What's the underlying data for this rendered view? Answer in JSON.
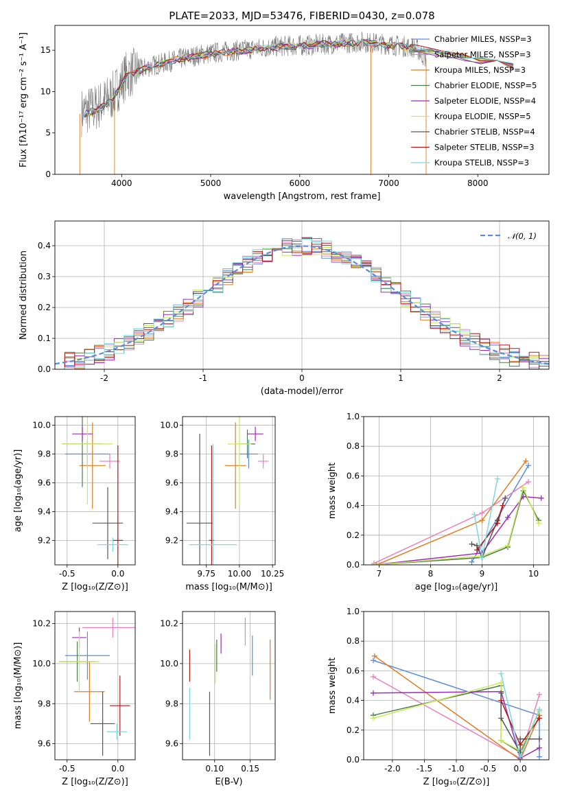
{
  "colors": {
    "chabrier_miles": "#5b8bd8",
    "salpeter_miles": "#e87fc0",
    "kroupa_miles": "#e07b20",
    "chabrier_elodie": "#4a7a4a",
    "salpeter_elodie": "#9a2ab8",
    "kroupa_elodie": "#c8ea5a",
    "chabrier_stelib": "#555555",
    "salpeter_stelib": "#b01818",
    "kroupa_stelib": "#7ad8e0",
    "grid": "#b0b0b0"
  },
  "chart_data": [
    {
      "id": "spectrum",
      "type": "line",
      "title": "PLATE=2033, MJD=53476, FIBERID=0430, z=0.078",
      "xlabel": "wavelength [Angstrom, rest frame]",
      "ylabel": "Flux [fλ10⁻¹⁷ erg cm⁻² s⁻¹ A⁻¹]",
      "xlim": [
        3250,
        8800
      ],
      "ylim": [
        0,
        18
      ],
      "xticks": [
        4000,
        5000,
        6000,
        7000,
        8000
      ],
      "yticks": [
        0,
        5,
        10,
        15
      ],
      "grid": false,
      "legend_loc": "right",
      "legend": [
        "Chabrier MILES, NSSP=3",
        "Salpeter MILES, NSSP=3",
        "Kroupa MILES, NSSP=3",
        "Chabrier ELODIE, NSSP=5",
        "Salpeter ELODIE, NSSP=4",
        "Kroupa ELODIE, NSSP=5",
        "Chabrier STELIB, NSSP=4",
        "Salpeter STELIB, NSSP=3",
        "Kroupa STELIB, NSSP=3"
      ],
      "data_wavelength": [
        3550,
        3700,
        3900,
        4050,
        4300,
        4600,
        4900,
        5200,
        5500,
        5800,
        6100,
        6400,
        6700,
        7000,
        7300,
        7420
      ],
      "data_flux": [
        7.5,
        8.0,
        9.5,
        12.0,
        13.0,
        13.8,
        14.5,
        14.9,
        15.2,
        15.5,
        15.6,
        15.8,
        16.0,
        15.7,
        15.3,
        14.0
      ],
      "model_wavelength": [
        3550,
        3700,
        3900,
        4050,
        4300,
        4600,
        4900,
        5200,
        5500,
        5800,
        6100,
        6400,
        6700,
        7000,
        7300,
        8400
      ],
      "model_flux": [
        7.3,
        7.6,
        9.0,
        11.8,
        13.0,
        13.8,
        14.4,
        14.8,
        15.1,
        15.4,
        15.6,
        15.8,
        15.9,
        15.6,
        15.2,
        13.0
      ]
    },
    {
      "id": "residuals",
      "type": "line",
      "xlabel": "(data-model)/error",
      "ylabel": "Normed distribution",
      "xlim": [
        -2.5,
        2.5
      ],
      "ylim": [
        0,
        0.48
      ],
      "xticks": [
        -2,
        -1,
        0,
        1,
        2
      ],
      "yticks": [
        0.0,
        0.1,
        0.2,
        0.3,
        0.4
      ],
      "grid": true,
      "legend_loc": "top-right",
      "legend_text": "𝒩(0, 1)",
      "gauss_mean": 0,
      "gauss_sigma": 1
    },
    {
      "id": "age_vs_Z",
      "type": "scatter",
      "xlabel": "Z [log₁₀(Z/Z⊙)]",
      "ylabel": "age  [log₁₀(age/yr)]",
      "xlim": [
        -0.62,
        0.17
      ],
      "ylim": [
        9.03,
        10.06
      ],
      "xticks": [
        -0.5,
        0.0
      ],
      "yticks": [
        9.2,
        9.4,
        9.6,
        9.8,
        10.0
      ],
      "grid": true,
      "points": [
        {
          "m": "chabrier_miles",
          "x": -0.3,
          "y": 9.8,
          "xerr": 0.22,
          "yerr": 0.1
        },
        {
          "m": "salpeter_miles",
          "x": -0.08,
          "y": 9.75,
          "xerr": 0.1,
          "yerr": 0.05
        },
        {
          "m": "kroupa_miles",
          "x": -0.25,
          "y": 9.72,
          "xerr": 0.13,
          "yerr": 0.3
        },
        {
          "m": "chabrier_elodie",
          "x": -0.35,
          "y": 9.87,
          "xerr": 0.2,
          "yerr": 0.3
        },
        {
          "m": "salpeter_elodie",
          "x": -0.35,
          "y": 9.94,
          "xerr": 0.1,
          "yerr": 0.05
        },
        {
          "m": "kroupa_elodie",
          "x": -0.3,
          "y": 9.87,
          "xerr": 0.25,
          "yerr": 0.42
        },
        {
          "m": "chabrier_stelib",
          "x": -0.1,
          "y": 9.32,
          "xerr": 0.15,
          "yerr": 0.25
        },
        {
          "m": "salpeter_stelib",
          "x": 0.0,
          "y": 9.2,
          "xerr": 0.05,
          "yerr": 0.66
        },
        {
          "m": "kroupa_stelib",
          "x": -0.05,
          "y": 9.17,
          "xerr": 0.15,
          "yerr": 0.05
        }
      ]
    },
    {
      "id": "age_vs_mass",
      "type": "scatter",
      "xlabel": "mass [log₁₀(M/M⊙)]",
      "ylabel": "",
      "xlim": [
        9.57,
        10.27
      ],
      "ylim": [
        9.03,
        10.06
      ],
      "xticks": [
        9.75,
        10.0,
        10.25
      ],
      "yticks": [
        9.2,
        9.4,
        9.6,
        9.8,
        10.0
      ],
      "grid": true,
      "points": [
        {
          "m": "chabrier_miles",
          "x": 10.07,
          "y": 9.8,
          "xerr": 0.07,
          "yerr": 0.1
        },
        {
          "m": "salpeter_miles",
          "x": 10.18,
          "y": 9.75,
          "xerr": 0.04,
          "yerr": 0.05
        },
        {
          "m": "kroupa_miles",
          "x": 9.97,
          "y": 9.72,
          "xerr": 0.08,
          "yerr": 0.3
        },
        {
          "m": "chabrier_elodie",
          "x": 10.06,
          "y": 9.87,
          "xerr": 0.06,
          "yerr": 0.1
        },
        {
          "m": "salpeter_elodie",
          "x": 10.12,
          "y": 9.94,
          "xerr": 0.06,
          "yerr": 0.05
        },
        {
          "m": "kroupa_elodie",
          "x": 10.0,
          "y": 9.87,
          "xerr": 0.09,
          "yerr": 0.42
        },
        {
          "m": "chabrier_stelib",
          "x": 9.7,
          "y": 9.32,
          "xerr": 0.1,
          "yerr": 0.62
        },
        {
          "m": "salpeter_stelib",
          "x": 9.79,
          "y": 9.2,
          "xerr": 0.02,
          "yerr": 0.66
        },
        {
          "m": "kroupa_stelib",
          "x": 9.8,
          "y": 9.17,
          "xerr": 0.18,
          "yerr": 0.7
        }
      ]
    },
    {
      "id": "weight_vs_age",
      "type": "line",
      "xlabel": "age  [log₁₀(age/yr)]",
      "ylabel": "mass weight",
      "xlim": [
        6.7,
        10.3
      ],
      "ylim": [
        0,
        1.0
      ],
      "xticks": [
        7,
        8,
        9,
        10
      ],
      "yticks": [
        0.0,
        0.2,
        0.4,
        0.6,
        0.8,
        1.0
      ],
      "grid": true,
      "series": [
        {
          "m": "chabrier_miles",
          "x": [
            8.8,
            9.9
          ],
          "y": [
            0.02,
            0.67
          ]
        },
        {
          "m": "salpeter_miles",
          "x": [
            6.9,
            9.0,
            9.9
          ],
          "y": [
            0.01,
            0.35,
            0.56
          ]
        },
        {
          "m": "kroupa_miles",
          "x": [
            6.95,
            9.0,
            9.85
          ],
          "y": [
            0.0,
            0.3,
            0.7
          ]
        },
        {
          "m": "chabrier_elodie",
          "x": [
            6.9,
            9.0,
            9.5,
            9.8,
            10.1
          ],
          "y": [
            0.0,
            0.05,
            0.12,
            0.5,
            0.3
          ]
        },
        {
          "m": "salpeter_elodie",
          "x": [
            6.9,
            9.0,
            9.5,
            9.8,
            10.15
          ],
          "y": [
            0.0,
            0.08,
            0.32,
            0.46,
            0.45
          ]
        },
        {
          "m": "kroupa_elodie",
          "x": [
            6.9,
            9.0,
            9.5,
            9.8,
            10.1
          ],
          "y": [
            0.0,
            0.06,
            0.13,
            0.52,
            0.28
          ]
        },
        {
          "m": "chabrier_stelib",
          "x": [
            8.8,
            8.9,
            9.0,
            9.3,
            9.45
          ],
          "y": [
            0.14,
            0.13,
            0.05,
            0.3,
            0.45
          ]
        },
        {
          "m": "salpeter_stelib",
          "x": [
            8.9,
            9.3,
            9.4
          ],
          "y": [
            0.1,
            0.28,
            0.4
          ]
        },
        {
          "m": "kroupa_stelib",
          "x": [
            8.85,
            9.0,
            9.3
          ],
          "y": [
            0.34,
            0.05,
            0.58
          ]
        }
      ]
    },
    {
      "id": "mass_vs_Z",
      "type": "scatter",
      "xlabel": "Z [log₁₀(Z/Z⊙)]",
      "ylabel": "mass [log₁₀(M/M⊙)]",
      "xlim": [
        -0.62,
        0.17
      ],
      "ylim": [
        9.52,
        10.26
      ],
      "xticks": [
        -0.5,
        0.0
      ],
      "yticks": [
        9.6,
        9.8,
        10.0,
        10.2
      ],
      "grid": true,
      "points": [
        {
          "m": "chabrier_miles",
          "x": -0.3,
          "y": 10.04,
          "xerr": 0.22,
          "yerr": 0.12
        },
        {
          "m": "salpeter_miles",
          "x": -0.05,
          "y": 10.18,
          "xerr": 0.3,
          "yerr": 0.05
        },
        {
          "m": "kroupa_miles",
          "x": -0.28,
          "y": 9.86,
          "xerr": 0.15,
          "yerr": 0.15
        },
        {
          "m": "chabrier_elodie",
          "x": -0.4,
          "y": 10.01,
          "xerr": 0.18,
          "yerr": 0.1
        },
        {
          "m": "salpeter_elodie",
          "x": -0.38,
          "y": 10.13,
          "xerr": 0.07,
          "yerr": 0.05
        },
        {
          "m": "kroupa_elodie",
          "x": -0.38,
          "y": 10.01,
          "xerr": 0.2,
          "yerr": 0.15
        },
        {
          "m": "chabrier_stelib",
          "x": -0.15,
          "y": 9.7,
          "xerr": 0.12,
          "yerr": 0.16
        },
        {
          "m": "salpeter_stelib",
          "x": 0.02,
          "y": 9.79,
          "xerr": 0.1,
          "yerr": 0.15
        },
        {
          "m": "kroupa_stelib",
          "x": -0.01,
          "y": 9.66,
          "xerr": 0.1,
          "yerr": 0.04
        }
      ]
    },
    {
      "id": "mass_vs_ebv",
      "type": "scatter",
      "xlabel": "E(B-V)",
      "ylabel": "",
      "xlim": [
        0.055,
        0.185
      ],
      "ylim": [
        9.52,
        10.26
      ],
      "xticks": [
        0.1,
        0.15
      ],
      "yticks": [
        9.6,
        9.8,
        10.0,
        10.2
      ],
      "grid": true,
      "points": [
        {
          "m": "chabrier_miles",
          "x": 0.153,
          "y": 10.04,
          "xerr": 0,
          "yerr": 0.1
        },
        {
          "m": "salpeter_miles",
          "x": 0.143,
          "y": 10.16,
          "xerr": 0,
          "yerr": 0.07
        },
        {
          "m": "kroupa_miles",
          "x": 0.178,
          "y": 9.97,
          "xerr": 0,
          "yerr": 0.15
        },
        {
          "m": "chabrier_elodie",
          "x": 0.103,
          "y": 10.04,
          "xerr": 0,
          "yerr": 0.08
        },
        {
          "m": "salpeter_elodie",
          "x": 0.109,
          "y": 10.1,
          "xerr": 0,
          "yerr": 0.05
        },
        {
          "m": "kroupa_elodie",
          "x": 0.101,
          "y": 10.0,
          "xerr": 0,
          "yerr": 0.1
        },
        {
          "m": "chabrier_stelib",
          "x": 0.093,
          "y": 9.7,
          "xerr": 0,
          "yerr": 0.16
        },
        {
          "m": "salpeter_stelib",
          "x": 0.065,
          "y": 9.99,
          "xerr": 0,
          "yerr": 0.08
        },
        {
          "m": "kroupa_stelib",
          "x": 0.065,
          "y": 9.75,
          "xerr": 0,
          "yerr": 0.13
        }
      ]
    },
    {
      "id": "weight_vs_Z",
      "type": "line",
      "xlabel": "Z [log₁₀(Z/Z⊙)]",
      "ylabel": "mass weight",
      "xlim": [
        -2.45,
        0.45
      ],
      "ylim": [
        0,
        1.0
      ],
      "xticks": [
        -2.0,
        -1.5,
        -1.0,
        -0.5,
        0.0
      ],
      "yticks": [
        0.0,
        0.2,
        0.4,
        0.6,
        0.8,
        1.0
      ],
      "grid": true,
      "series": [
        {
          "m": "chabrier_miles",
          "x": [
            -2.3,
            0.3,
            0.3
          ],
          "y": [
            0.67,
            0.3,
            0.02
          ]
        },
        {
          "m": "salpeter_miles",
          "x": [
            -2.3,
            0.0,
            0.3
          ],
          "y": [
            0.56,
            0.01,
            0.44
          ]
        },
        {
          "m": "kroupa_miles",
          "x": [
            -2.28,
            0.0,
            0.3
          ],
          "y": [
            0.7,
            0.0,
            0.3
          ]
        },
        {
          "m": "chabrier_elodie",
          "x": [
            -2.3,
            -0.3,
            -0.3,
            0.0,
            0.3
          ],
          "y": [
            0.3,
            0.5,
            0.13,
            0.05,
            0.33
          ]
        },
        {
          "m": "salpeter_elodie",
          "x": [
            -2.3,
            -0.3,
            0.0,
            0.3
          ],
          "y": [
            0.45,
            0.46,
            0.01,
            0.08
          ]
        },
        {
          "m": "kroupa_elodie",
          "x": [
            -2.3,
            -0.3,
            -0.3,
            0.0,
            0.3
          ],
          "y": [
            0.28,
            0.52,
            0.13,
            0.06,
            0.33
          ]
        },
        {
          "m": "chabrier_stelib",
          "x": [
            -0.3,
            -0.3,
            0.0,
            0.0,
            0.3
          ],
          "y": [
            0.45,
            0.28,
            0.05,
            0.14,
            0.14
          ]
        },
        {
          "m": "salpeter_stelib",
          "x": [
            -0.3,
            0.0,
            0.3
          ],
          "y": [
            0.4,
            0.1,
            0.28
          ]
        },
        {
          "m": "kroupa_stelib",
          "x": [
            -0.3,
            0.0,
            0.3
          ],
          "y": [
            0.58,
            0.02,
            0.34
          ]
        }
      ]
    }
  ]
}
